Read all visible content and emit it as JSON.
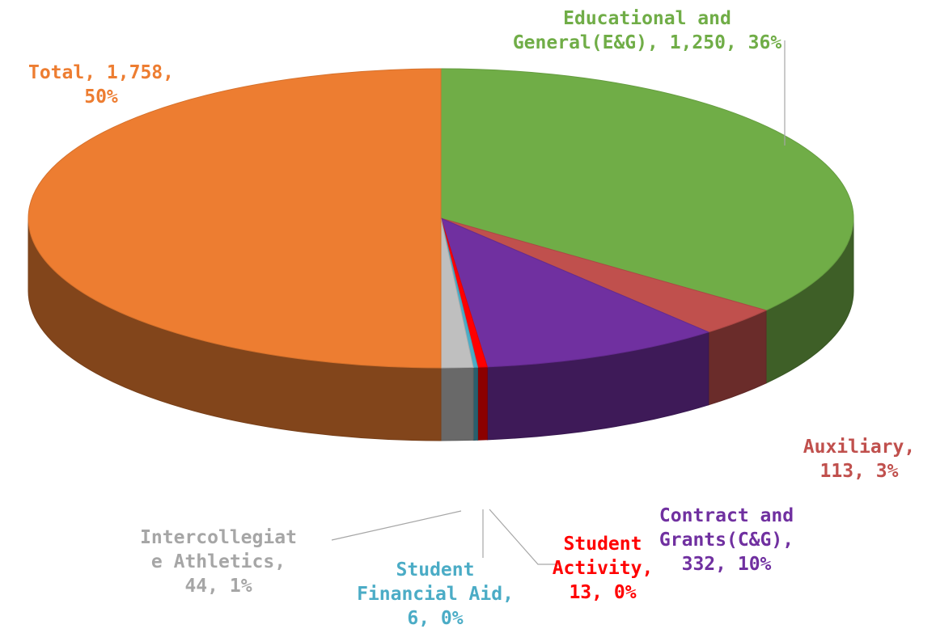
{
  "chart_data": {
    "type": "pie",
    "title": "",
    "slices": [
      {
        "label_lines": [
          "Educational and",
          "General(E&G), 1,250, 36%"
        ],
        "name": "Educational and General(E&G)",
        "value": 1250,
        "percent": 36,
        "color": "#70AD47",
        "label_color": "#70AD47"
      },
      {
        "label_lines": [
          "Auxiliary,",
          "113, 3%"
        ],
        "name": "Auxiliary",
        "value": 113,
        "percent": 3,
        "color": "#C0504D",
        "label_color": "#C0504D"
      },
      {
        "label_lines": [
          "Contract and",
          "Grants(C&G),",
          "332, 10%"
        ],
        "name": "Contract and Grants(C&G)",
        "value": 332,
        "percent": 10,
        "color": "#7030A0",
        "label_color": "#7030A0"
      },
      {
        "label_lines": [
          "Student",
          "Activity,",
          "13, 0%"
        ],
        "name": "Student Activity",
        "value": 13,
        "percent": 0,
        "color": "#FF0000",
        "label_color": "#FF0000"
      },
      {
        "label_lines": [
          "Student",
          "Financial Aid,",
          "6, 0%"
        ],
        "name": "Student Financial Aid",
        "value": 6,
        "percent": 0,
        "color": "#4BACC6",
        "label_color": "#4BACC6"
      },
      {
        "label_lines": [
          "Intercollegiat",
          "e Athletics,",
          "44, 1%"
        ],
        "name": "Intercollegiate Athletics",
        "value": 44,
        "percent": 1,
        "color": "#BFBFBF",
        "label_color": "#A6A6A6"
      },
      {
        "label_lines": [
          "Total, 1,758,",
          "50%"
        ],
        "name": "Total",
        "value": 1758,
        "percent": 50,
        "color": "#ED7D31",
        "label_color": "#ED7D31"
      }
    ],
    "legend": "none",
    "style": "3d-pie"
  }
}
